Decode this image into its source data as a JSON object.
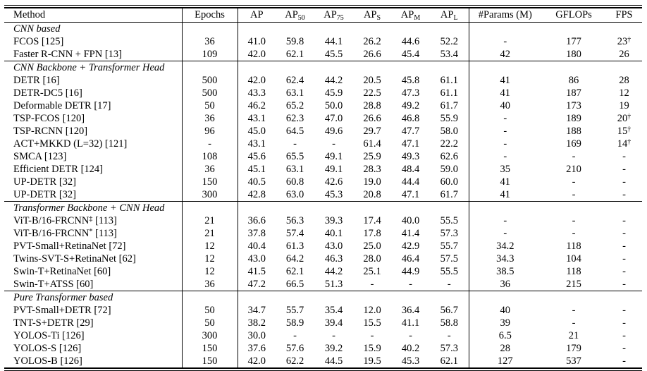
{
  "colors": {
    "background": "#ffffff",
    "text": "#000000",
    "rule": "#000000"
  },
  "table": {
    "columns": [
      {
        "t": "Method"
      },
      {
        "t": "Epochs"
      },
      {
        "t": "AP"
      },
      {
        "t": "AP",
        "sub": "50"
      },
      {
        "t": "AP",
        "sub": "75"
      },
      {
        "t": "AP",
        "sub": "S"
      },
      {
        "t": "AP",
        "sub": "M"
      },
      {
        "t": "AP",
        "sub": "L"
      },
      {
        "t": "#Params (M)"
      },
      {
        "t": "GFLOPs"
      },
      {
        "t": "FPS"
      }
    ],
    "sections": [
      {
        "label": "CNN based",
        "rows": [
          {
            "method": "FCOS [125]",
            "values": [
              "36",
              "41.0",
              "59.8",
              "44.1",
              "26.2",
              "44.6",
              "52.2",
              "-",
              "177",
              {
                "t": "23",
                "sup": "†"
              }
            ]
          },
          {
            "method": "Faster R-CNN + FPN [13]",
            "values": [
              "109",
              "42.0",
              "62.1",
              "45.5",
              "26.6",
              "45.4",
              "53.4",
              "42",
              "180",
              "26"
            ]
          }
        ]
      },
      {
        "label": "CNN Backbone + Transformer Head",
        "rows": [
          {
            "method": "DETR [16]",
            "values": [
              "500",
              "42.0",
              "62.4",
              "44.2",
              "20.5",
              "45.8",
              "61.1",
              "41",
              "86",
              "28"
            ]
          },
          {
            "method": "DETR-DC5 [16]",
            "values": [
              "500",
              "43.3",
              "63.1",
              "45.9",
              "22.5",
              "47.3",
              "61.1",
              "41",
              "187",
              "12"
            ]
          },
          {
            "method": "Deformable DETR [17]",
            "values": [
              "50",
              "46.2",
              "65.2",
              "50.0",
              "28.8",
              "49.2",
              "61.7",
              "40",
              "173",
              "19"
            ]
          },
          {
            "method": "TSP-FCOS [120]",
            "values": [
              "36",
              "43.1",
              "62.3",
              "47.0",
              "26.6",
              "46.8",
              "55.9",
              "-",
              "189",
              {
                "t": "20",
                "sup": "†"
              }
            ]
          },
          {
            "method": "TSP-RCNN [120]",
            "values": [
              "96",
              "45.0",
              "64.5",
              "49.6",
              "29.7",
              "47.7",
              "58.0",
              "-",
              "188",
              {
                "t": "15",
                "sup": "†"
              }
            ]
          },
          {
            "method": "ACT+MKKD (L=32) [121]",
            "values": [
              "-",
              "43.1",
              "-",
              "-",
              "61.4",
              "47.1",
              "22.2",
              "-",
              "169",
              {
                "t": "14",
                "sup": "†"
              }
            ]
          },
          {
            "method": "SMCA [123]",
            "values": [
              "108",
              "45.6",
              "65.5",
              "49.1",
              "25.9",
              "49.3",
              "62.6",
              "-",
              "-",
              "-"
            ]
          },
          {
            "method": "Efficient DETR [124]",
            "values": [
              "36",
              "45.1",
              "63.1",
              "49.1",
              "28.3",
              "48.4",
              "59.0",
              "35",
              "210",
              "-"
            ]
          },
          {
            "method": "UP-DETR [32]",
            "values": [
              "150",
              "40.5",
              "60.8",
              "42.6",
              "19.0",
              "44.4",
              "60.0",
              "41",
              "-",
              "-"
            ]
          },
          {
            "method": "UP-DETR [32]",
            "values": [
              "300",
              "42.8",
              "63.0",
              "45.3",
              "20.8",
              "47.1",
              "61.7",
              "41",
              "-",
              "-"
            ]
          }
        ]
      },
      {
        "label": "Transformer Backbone + CNN Head",
        "rows": [
          {
            "method": {
              "t": "ViT-B/16-FRCNN",
              "sup": "‡",
              "post": " [113]"
            },
            "values": [
              "21",
              "36.6",
              "56.3",
              "39.3",
              "17.4",
              "40.0",
              "55.5",
              "-",
              "-",
              "-"
            ]
          },
          {
            "method": {
              "t": "ViT-B/16-FRCNN",
              "sup": "*",
              "post": " [113]"
            },
            "values": [
              "21",
              "37.8",
              "57.4",
              "40.1",
              "17.8",
              "41.4",
              "57.3",
              "-",
              "-",
              "-"
            ]
          },
          {
            "method": "PVT-Small+RetinaNet [72]",
            "values": [
              "12",
              "40.4",
              "61.3",
              "43.0",
              "25.0",
              "42.9",
              "55.7",
              "34.2",
              "118",
              "-"
            ]
          },
          {
            "method": "Twins-SVT-S+RetinaNet [62]",
            "values": [
              "12",
              "43.0",
              "64.2",
              "46.3",
              "28.0",
              "46.4",
              "57.5",
              "34.3",
              "104",
              "-"
            ]
          },
          {
            "method": "Swin-T+RetinaNet [60]",
            "values": [
              "12",
              "41.5",
              "62.1",
              "44.2",
              "25.1",
              "44.9",
              "55.5",
              "38.5",
              "118",
              "-"
            ]
          },
          {
            "method": "Swin-T+ATSS [60]",
            "values": [
              "36",
              "47.2",
              "66.5",
              "51.3",
              "-",
              "-",
              "-",
              "36",
              "215",
              "-"
            ]
          }
        ]
      },
      {
        "label": "Pure Transformer based",
        "rows": [
          {
            "method": "PVT-Small+DETR [72]",
            "values": [
              "50",
              "34.7",
              "55.7",
              "35.4",
              "12.0",
              "36.4",
              "56.7",
              "40",
              "-",
              "-"
            ]
          },
          {
            "method": "TNT-S+DETR [29]",
            "values": [
              "50",
              "38.2",
              "58.9",
              "39.4",
              "15.5",
              "41.1",
              "58.8",
              "39",
              "-",
              "-"
            ]
          },
          {
            "method": "YOLOS-Ti [126]",
            "values": [
              "300",
              "30.0",
              "-",
              "-",
              "-",
              "-",
              "-",
              "6.5",
              "21",
              "-"
            ]
          },
          {
            "method": "YOLOS-S [126]",
            "values": [
              "150",
              "37.6",
              "57.6",
              "39.2",
              "15.9",
              "40.2",
              "57.3",
              "28",
              "179",
              "-"
            ]
          },
          {
            "method": "YOLOS-B [126]",
            "values": [
              "150",
              "42.0",
              "62.2",
              "44.5",
              "19.5",
              "45.3",
              "62.1",
              "127",
              "537",
              "-"
            ]
          }
        ]
      }
    ]
  }
}
